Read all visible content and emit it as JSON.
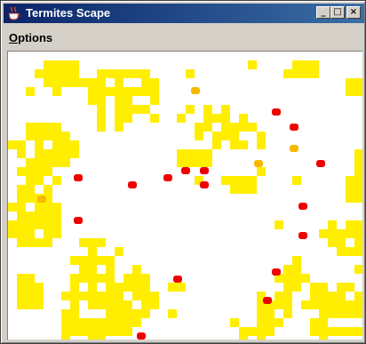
{
  "window": {
    "title": "Termites Scape",
    "app_icon": "java-cup-icon",
    "controls": {
      "minimize_icon": "minimize-icon",
      "maximize_icon": "maximize-icon",
      "close_icon": "close-icon",
      "minimize_label": "_",
      "maximize_label": "□",
      "close_label": "×"
    }
  },
  "menubar": {
    "items": [
      {
        "mnemonic": "O",
        "rest": "ptions"
      }
    ]
  },
  "colors": {
    "chip": "#ffee00",
    "termite": "#ee0000",
    "carrying_termite": "#f7b900",
    "background": "#ffffff"
  }
}
